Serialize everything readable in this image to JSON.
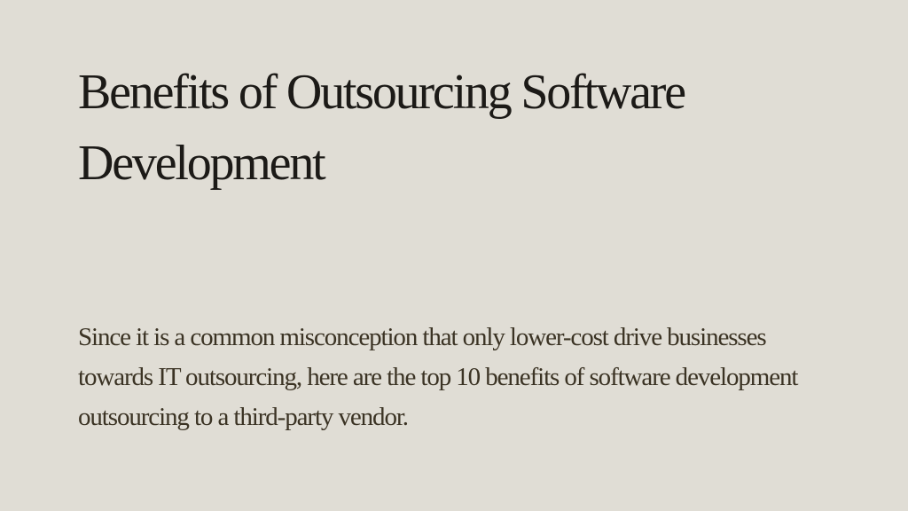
{
  "slide": {
    "title": "Benefits of Outsourcing Software Development",
    "body": "Since it is a common misconception that only lower-cost drive businesses towards IT outsourcing, here are the top 10 benefits of software development outsourcing to a third-party vendor.",
    "colors": {
      "background": "#e0ddd5",
      "title_text": "#1c1a17",
      "body_text": "#3b3324"
    }
  }
}
